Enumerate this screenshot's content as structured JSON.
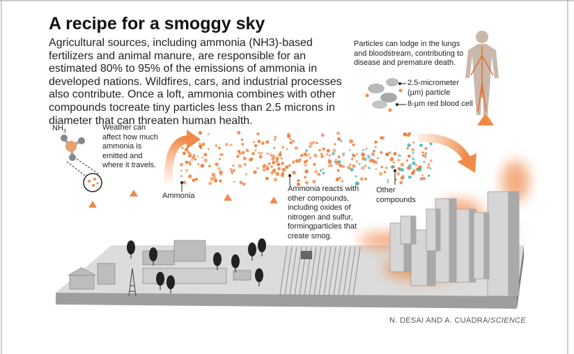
{
  "header": {
    "title": "A recipe for a smoggy sky",
    "paragraph": [
      "Agricultural sources, including ammonia (NH3)-based",
      "fertilizers and animal manure, are responsible for an",
      "estimated 80% to 95% of the emissions of ammonia in",
      "developed nations. Wildfires, cars, and industrial processes",
      "also contribute. Once a loft, ammonia combines with other",
      "compounds tocreate tiny particles less than 2.5 microns in",
      "diameter that can threaten human health."
    ]
  },
  "labels": {
    "nh3": {
      "base": "NH",
      "sub": "3"
    },
    "weather": [
      "Weather can",
      "affect how much",
      "ammonia is",
      "emitted and",
      "where it travels."
    ],
    "ammonia": "Ammonia",
    "reacts": [
      "Ammonia reacts with",
      "other compounds,",
      "including oxides of",
      "nitrogen and sulfur,",
      "formingparticles that",
      "create smog."
    ],
    "other": [
      "Other",
      "compounds"
    ],
    "health": [
      "Particles can lodge in the lungs",
      "and bloodstream, contributing to",
      "disease and premature death."
    ],
    "particle": [
      "2.5-micrometer",
      "(µm) particle"
    ],
    "cell": "8-µm red blood cell"
  },
  "credit": {
    "names": "N. DESAI AND A. CUADRA/",
    "source": "SCIENCE"
  }
}
